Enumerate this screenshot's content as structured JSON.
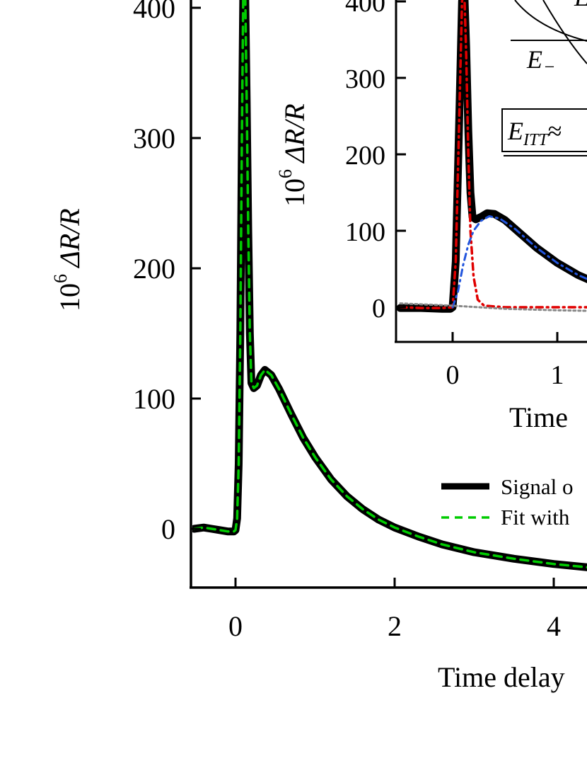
{
  "chart_data": [
    {
      "type": "line",
      "xlabel": "Time delay",
      "ylabel_pre": "10",
      "ylabel_sup": "6",
      "ylabel_post": " ΔR/R",
      "xlim": [
        -0.55,
        6.5
      ],
      "ylim": [
        -45,
        430
      ],
      "xticks": [
        0,
        2,
        4
      ],
      "yticks": [
        0,
        100,
        200,
        300,
        400
      ],
      "legend": [
        {
          "label": "Signal o",
          "color": "#000000",
          "style": "solid"
        },
        {
          "label": "Fit with",
          "color": "#00cc00",
          "style": "dashed"
        }
      ],
      "series": [
        {
          "color": "#000000",
          "points": [
            [
              -0.52,
              0
            ],
            [
              -0.4,
              1
            ],
            [
              -0.3,
              0
            ],
            [
              -0.2,
              -1
            ],
            [
              -0.1,
              -2
            ],
            [
              -0.02,
              -2
            ],
            [
              0.0,
              -1
            ],
            [
              0.02,
              8
            ],
            [
              0.04,
              50
            ],
            [
              0.06,
              150
            ],
            [
              0.08,
              300
            ],
            [
              0.1,
              430
            ],
            [
              0.12,
              420
            ],
            [
              0.14,
              330
            ],
            [
              0.16,
              230
            ],
            [
              0.18,
              150
            ],
            [
              0.2,
              112
            ],
            [
              0.23,
              108
            ],
            [
              0.27,
              110
            ],
            [
              0.32,
              118
            ],
            [
              0.37,
              122
            ],
            [
              0.45,
              118
            ],
            [
              0.55,
              107
            ],
            [
              0.7,
              88
            ],
            [
              0.85,
              70
            ],
            [
              1.0,
              55
            ],
            [
              1.2,
              38
            ],
            [
              1.4,
              25
            ],
            [
              1.6,
              15
            ],
            [
              1.8,
              7
            ],
            [
              2.0,
              1
            ],
            [
              2.3,
              -6
            ],
            [
              2.6,
              -12
            ],
            [
              3.0,
              -18
            ],
            [
              3.5,
              -23
            ],
            [
              4.0,
              -27
            ],
            [
              4.5,
              -30
            ],
            [
              5.0,
              -32
            ],
            [
              5.5,
              -34
            ],
            [
              6.0,
              -35
            ],
            [
              6.5,
              -36
            ]
          ]
        },
        {
          "color": "#00cc00",
          "points": [
            [
              -0.52,
              0
            ],
            [
              -0.4,
              1
            ],
            [
              -0.3,
              0
            ],
            [
              -0.2,
              -1
            ],
            [
              -0.1,
              -2
            ],
            [
              -0.02,
              -2
            ],
            [
              0.0,
              -1
            ],
            [
              0.02,
              8
            ],
            [
              0.04,
              50
            ],
            [
              0.06,
              150
            ],
            [
              0.08,
              300
            ],
            [
              0.1,
              430
            ],
            [
              0.12,
              420
            ],
            [
              0.14,
              330
            ],
            [
              0.16,
              230
            ],
            [
              0.18,
              150
            ],
            [
              0.2,
              112
            ],
            [
              0.23,
              108
            ],
            [
              0.27,
              110
            ],
            [
              0.32,
              118
            ],
            [
              0.37,
              122
            ],
            [
              0.45,
              118
            ],
            [
              0.55,
              107
            ],
            [
              0.7,
              88
            ],
            [
              0.85,
              70
            ],
            [
              1.0,
              55
            ],
            [
              1.2,
              38
            ],
            [
              1.4,
              25
            ],
            [
              1.6,
              15
            ],
            [
              1.8,
              7
            ],
            [
              2.0,
              1
            ],
            [
              2.3,
              -6
            ],
            [
              2.6,
              -12
            ],
            [
              3.0,
              -18
            ],
            [
              3.5,
              -23
            ],
            [
              4.0,
              -27
            ],
            [
              4.5,
              -30
            ],
            [
              5.0,
              -32
            ],
            [
              5.5,
              -34
            ],
            [
              6.0,
              -35
            ],
            [
              6.5,
              -36
            ]
          ]
        }
      ]
    },
    {
      "type": "line",
      "xlabel": "Time",
      "ylabel_pre": "10",
      "ylabel_sup": "6",
      "ylabel_post": " ΔR/R",
      "xlim": [
        -0.55,
        1.4
      ],
      "ylim": [
        -45,
        410
      ],
      "xticks": [
        0,
        1
      ],
      "yticks": [
        0,
        100,
        200,
        300,
        400
      ],
      "annotations": {
        "e_minus": "E",
        "e_minus_sub": "−",
        "e_top": "E",
        "e_itt": "E",
        "e_itt_sub": "ITT",
        "e_itt_rel": "≈"
      },
      "series": [
        {
          "color": "#000000",
          "points": [
            [
              -0.5,
              -1
            ],
            [
              -0.3,
              -1
            ],
            [
              -0.1,
              -2
            ],
            [
              -0.02,
              -2
            ],
            [
              0.0,
              0
            ],
            [
              0.03,
              60
            ],
            [
              0.06,
              230
            ],
            [
              0.09,
              400
            ],
            [
              0.11,
              420
            ],
            [
              0.13,
              340
            ],
            [
              0.15,
              230
            ],
            [
              0.17,
              150
            ],
            [
              0.19,
              118
            ],
            [
              0.22,
              115
            ],
            [
              0.27,
              118
            ],
            [
              0.33,
              123
            ],
            [
              0.4,
              122
            ],
            [
              0.5,
              114
            ],
            [
              0.6,
              102
            ],
            [
              0.8,
              78
            ],
            [
              1.0,
              58
            ],
            [
              1.2,
              42
            ],
            [
              1.4,
              30
            ]
          ]
        },
        {
          "color": "#e00000",
          "points": [
            [
              -0.5,
              0
            ],
            [
              -0.3,
              -1
            ],
            [
              -0.1,
              -1
            ],
            [
              0.0,
              0
            ],
            [
              0.03,
              60
            ],
            [
              0.06,
              230
            ],
            [
              0.09,
              400
            ],
            [
              0.11,
              420
            ],
            [
              0.13,
              330
            ],
            [
              0.15,
              200
            ],
            [
              0.17,
              100
            ],
            [
              0.2,
              40
            ],
            [
              0.24,
              10
            ],
            [
              0.3,
              2
            ],
            [
              0.5,
              0
            ],
            [
              1.0,
              0
            ],
            [
              1.4,
              0
            ]
          ]
        },
        {
          "color": "#2255dd",
          "points": [
            [
              0.0,
              0
            ],
            [
              0.05,
              20
            ],
            [
              0.1,
              55
            ],
            [
              0.15,
              82
            ],
            [
              0.2,
              100
            ],
            [
              0.27,
              113
            ],
            [
              0.35,
              119
            ],
            [
              0.45,
              116
            ],
            [
              0.6,
              102
            ],
            [
              0.8,
              78
            ],
            [
              1.0,
              58
            ],
            [
              1.2,
              42
            ],
            [
              1.4,
              30
            ]
          ]
        },
        {
          "color": "#888888",
          "points": [
            [
              -0.5,
              5
            ],
            [
              0.0,
              2
            ],
            [
              0.5,
              -2
            ],
            [
              1.0,
              -4
            ],
            [
              1.4,
              -5
            ]
          ]
        }
      ]
    }
  ]
}
